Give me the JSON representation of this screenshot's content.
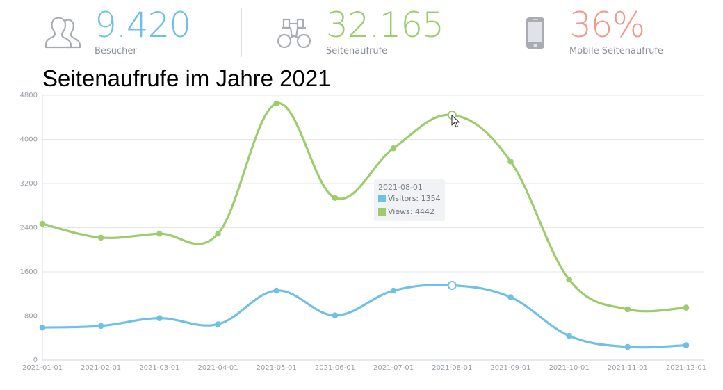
{
  "stats": [
    {
      "value": "9.420",
      "label": "Besucher",
      "color": "#6ec1e4",
      "icon": "visitors-icon"
    },
    {
      "value": "32.165",
      "label": "Seitenaufrufe",
      "color": "#9ccc6b",
      "icon": "binoculars-icon"
    },
    {
      "value": "36%",
      "label": "Mobile Seitenaufrufe",
      "color": "#f0998d",
      "icon": "mobile-phone-icon"
    }
  ],
  "chart_data": {
    "type": "line",
    "title": "Seitenaufrufe im Jahre 2021",
    "x": [
      "2021-01-01",
      "2021-02-01",
      "2021-03-01",
      "2021-04-01",
      "2021-05-01",
      "2021-06-01",
      "2021-07-01",
      "2021-08-01",
      "2021-09-01",
      "2021-10-01",
      "2021-11-01",
      "2021-12-01"
    ],
    "series": [
      {
        "name": "Visitors",
        "color": "#6ec1e4",
        "values": [
          590,
          620,
          760,
          650,
          1260,
          810,
          1260,
          1354,
          1140,
          440,
          240,
          270
        ]
      },
      {
        "name": "Views",
        "color": "#9ccc6b",
        "values": [
          2470,
          2220,
          2290,
          2290,
          4650,
          2940,
          3840,
          4442,
          3600,
          1460,
          920,
          950
        ]
      }
    ],
    "yticks": [
      0,
      800,
      1600,
      2400,
      3200,
      4000,
      4800
    ],
    "ylim": [
      0,
      4800
    ],
    "grid": true,
    "highlight_index": 7
  },
  "tooltip": {
    "date": "2021-08-01",
    "visitors_text": "Visitors: 1354",
    "views_text": "Views: 4442"
  }
}
